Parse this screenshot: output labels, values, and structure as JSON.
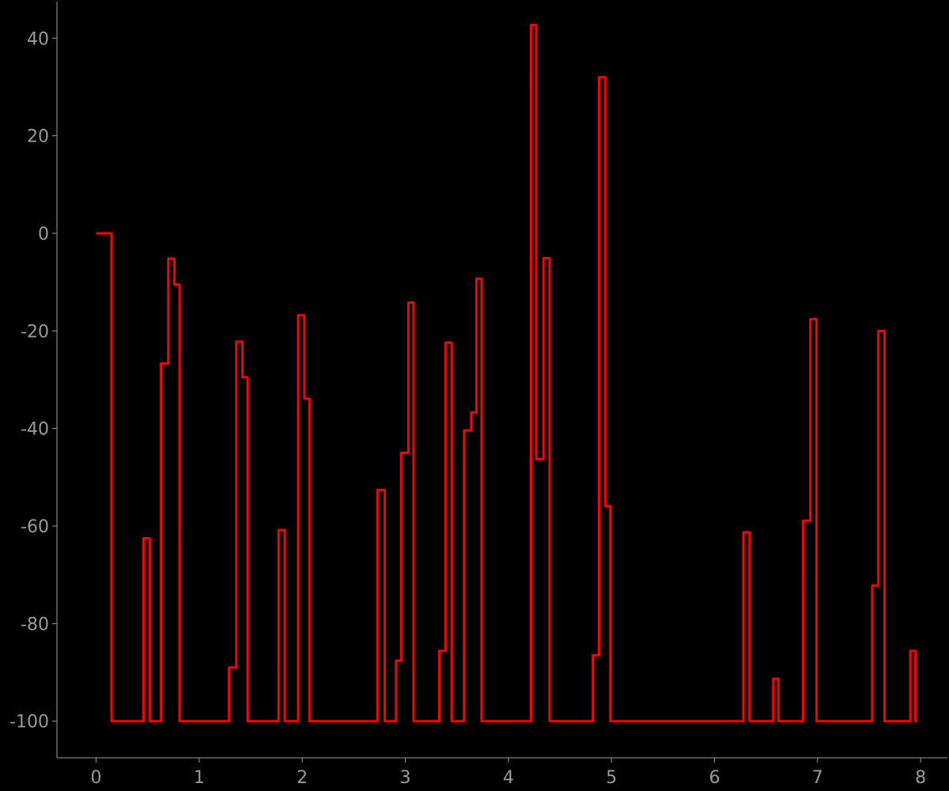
{
  "chart_data": {
    "type": "line",
    "title": "",
    "xlabel": "",
    "ylabel": "",
    "xlim": [
      -0.38,
      8.26
    ],
    "ylim": [
      -107.5,
      47.5
    ],
    "xticks": [
      0,
      1,
      2,
      3,
      4,
      5,
      6,
      7,
      8
    ],
    "yticks": [
      40,
      20,
      0,
      -20,
      -40,
      -60,
      -80,
      -100
    ],
    "grid": false,
    "legend": "none",
    "series": [
      {
        "color": "#ff0000",
        "step": "post",
        "points": [
          [
            0.0,
            0.0
          ],
          [
            0.15,
            -100.0
          ],
          [
            0.46,
            -62.5
          ],
          [
            0.52,
            -100.0
          ],
          [
            0.63,
            -26.7
          ],
          [
            0.7,
            -5.2
          ],
          [
            0.76,
            -10.5
          ],
          [
            0.81,
            -100.0
          ],
          [
            1.29,
            -89.0
          ],
          [
            1.36,
            -22.2
          ],
          [
            1.42,
            -29.5
          ],
          [
            1.47,
            -100.0
          ],
          [
            1.77,
            -60.8
          ],
          [
            1.83,
            -100.0
          ],
          [
            1.96,
            -16.8
          ],
          [
            2.02,
            -33.9
          ],
          [
            2.07,
            -100.0
          ],
          [
            2.73,
            -52.6
          ],
          [
            2.8,
            -100.0
          ],
          [
            2.91,
            -87.6
          ],
          [
            2.96,
            -45.0
          ],
          [
            3.03,
            -14.2
          ],
          [
            3.08,
            -100.0
          ],
          [
            3.33,
            -85.6
          ],
          [
            3.39,
            -22.4
          ],
          [
            3.45,
            -100.0
          ],
          [
            3.57,
            -40.4
          ],
          [
            3.64,
            -36.7
          ],
          [
            3.69,
            -9.3
          ],
          [
            3.74,
            -100.0
          ],
          [
            4.22,
            42.7
          ],
          [
            4.27,
            -46.3
          ],
          [
            4.34,
            -5.1
          ],
          [
            4.4,
            -100.0
          ],
          [
            4.82,
            -86.5
          ],
          [
            4.88,
            32.0
          ],
          [
            4.94,
            -55.9
          ],
          [
            4.99,
            -100.0
          ],
          [
            6.28,
            -61.3
          ],
          [
            6.34,
            -100.0
          ],
          [
            6.57,
            -91.3
          ],
          [
            6.62,
            -100.0
          ],
          [
            6.86,
            -58.9
          ],
          [
            6.93,
            -17.6
          ],
          [
            6.99,
            -100.0
          ],
          [
            7.53,
            -72.2
          ],
          [
            7.59,
            -20.0
          ],
          [
            7.65,
            -100.0
          ],
          [
            7.9,
            -85.6
          ],
          [
            7.95,
            -100.0
          ]
        ]
      }
    ]
  }
}
